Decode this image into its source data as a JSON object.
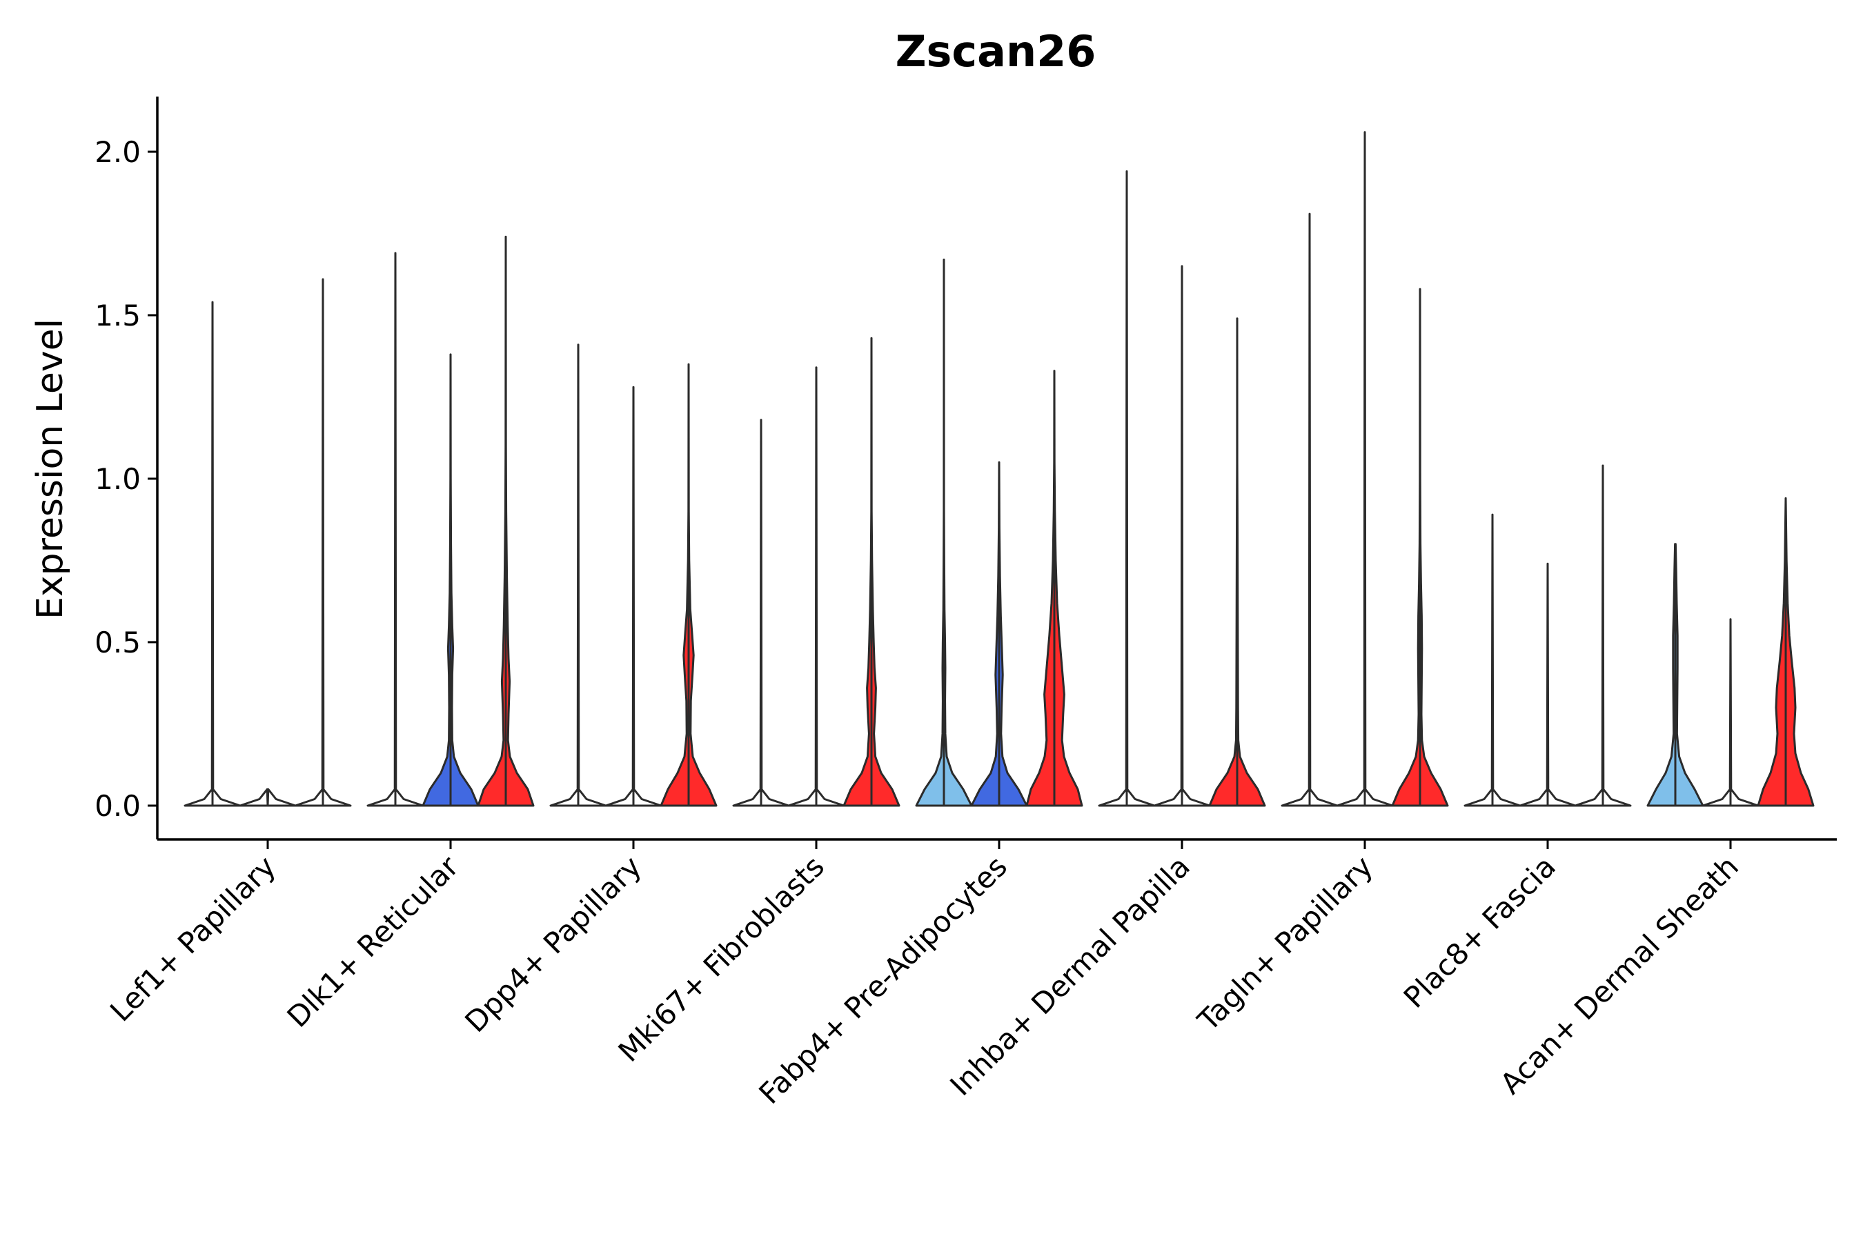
{
  "chart_data": {
    "type": "violin",
    "title": "Zscan26",
    "xlabel": "",
    "ylabel": "Expression Level",
    "ylim": [
      -0.1,
      2.17
    ],
    "yticks": [
      0.0,
      0.5,
      1.0,
      1.5,
      2.0
    ],
    "ytick_labels": [
      "0.0",
      "0.5",
      "1.0",
      "1.5",
      "2.0"
    ],
    "grid": false,
    "legend": "none",
    "colors": {
      "light_blue": "#7fbfea",
      "blue": "#4169e1",
      "red": "#ff2a2a",
      "outline": "#2b2b2b"
    },
    "categories": [
      {
        "label": "Lef1+ Papillary",
        "violins": [
          {
            "color": "light_blue",
            "max": 1.54,
            "width": 0.0,
            "density": []
          },
          {
            "color": "blue",
            "max": 0.0,
            "width": 0.0,
            "density": []
          },
          {
            "color": "red",
            "max": 1.61,
            "width": 0.0,
            "density": []
          }
        ]
      },
      {
        "label": "Dlk1+ Reticular",
        "violins": [
          {
            "color": "light_blue",
            "max": 1.69,
            "width": 0.0,
            "density": []
          },
          {
            "color": "blue",
            "max": 1.38,
            "width": 1.0,
            "density": [
              [
                0.0,
                1.0
              ],
              [
                0.05,
                0.75
              ],
              [
                0.1,
                0.35
              ],
              [
                0.15,
                0.12
              ],
              [
                0.2,
                0.06
              ],
              [
                0.3,
                0.05
              ],
              [
                0.4,
                0.06
              ],
              [
                0.48,
                0.09
              ],
              [
                0.55,
                0.06
              ],
              [
                0.65,
                0.03
              ],
              [
                0.8,
                0.015
              ],
              [
                1.0,
                0.005
              ]
            ]
          },
          {
            "color": "red",
            "max": 1.74,
            "width": 1.0,
            "density": [
              [
                0.0,
                1.0
              ],
              [
                0.05,
                0.8
              ],
              [
                0.1,
                0.4
              ],
              [
                0.15,
                0.15
              ],
              [
                0.2,
                0.08
              ],
              [
                0.28,
                0.1
              ],
              [
                0.38,
                0.14
              ],
              [
                0.45,
                0.1
              ],
              [
                0.55,
                0.07
              ],
              [
                0.7,
                0.04
              ],
              [
                0.9,
                0.015
              ],
              [
                1.1,
                0.005
              ]
            ]
          }
        ]
      },
      {
        "label": "Dpp4+ Papillary",
        "violins": [
          {
            "color": "light_blue",
            "max": 1.41,
            "width": 0.0,
            "density": []
          },
          {
            "color": "blue",
            "max": 1.28,
            "width": 0.0,
            "density": []
          },
          {
            "color": "red",
            "max": 1.35,
            "width": 1.0,
            "density": [
              [
                0.0,
                1.0
              ],
              [
                0.05,
                0.75
              ],
              [
                0.1,
                0.4
              ],
              [
                0.15,
                0.15
              ],
              [
                0.22,
                0.07
              ],
              [
                0.32,
                0.08
              ],
              [
                0.4,
                0.14
              ],
              [
                0.46,
                0.18
              ],
              [
                0.52,
                0.13
              ],
              [
                0.6,
                0.06
              ],
              [
                0.75,
                0.02
              ],
              [
                0.9,
                0.005
              ]
            ]
          }
        ]
      },
      {
        "label": "Mki67+ Fibroblasts",
        "violins": [
          {
            "color": "light_blue",
            "max": 1.18,
            "width": 0.0,
            "density": []
          },
          {
            "color": "blue",
            "max": 1.34,
            "width": 0.0,
            "density": []
          },
          {
            "color": "red",
            "max": 1.43,
            "width": 1.0,
            "density": [
              [
                0.0,
                1.0
              ],
              [
                0.05,
                0.75
              ],
              [
                0.1,
                0.35
              ],
              [
                0.15,
                0.14
              ],
              [
                0.22,
                0.09
              ],
              [
                0.3,
                0.14
              ],
              [
                0.36,
                0.16
              ],
              [
                0.42,
                0.11
              ],
              [
                0.5,
                0.08
              ],
              [
                0.6,
                0.05
              ],
              [
                0.75,
                0.02
              ],
              [
                0.9,
                0.005
              ]
            ]
          }
        ]
      },
      {
        "label": "Fabp4+ Pre-Adipocytes",
        "violins": [
          {
            "color": "light_blue",
            "max": 1.67,
            "width": 1.0,
            "density": [
              [
                0.0,
                1.0
              ],
              [
                0.05,
                0.7
              ],
              [
                0.1,
                0.3
              ],
              [
                0.15,
                0.1
              ],
              [
                0.22,
                0.05
              ],
              [
                0.32,
                0.04
              ],
              [
                0.42,
                0.05
              ],
              [
                0.5,
                0.04
              ],
              [
                0.6,
                0.02
              ],
              [
                0.75,
                0.01
              ],
              [
                0.9,
                0.003
              ]
            ]
          },
          {
            "color": "blue",
            "max": 1.05,
            "width": 1.0,
            "density": [
              [
                0.0,
                1.0
              ],
              [
                0.05,
                0.7
              ],
              [
                0.1,
                0.3
              ],
              [
                0.15,
                0.12
              ],
              [
                0.22,
                0.07
              ],
              [
                0.3,
                0.09
              ],
              [
                0.4,
                0.13
              ],
              [
                0.48,
                0.1
              ],
              [
                0.58,
                0.06
              ],
              [
                0.7,
                0.03
              ],
              [
                0.85,
                0.01
              ],
              [
                1.0,
                0.003
              ]
            ]
          },
          {
            "color": "red",
            "max": 1.33,
            "width": 1.0,
            "density": [
              [
                0.0,
                1.0
              ],
              [
                0.05,
                0.85
              ],
              [
                0.1,
                0.55
              ],
              [
                0.15,
                0.35
              ],
              [
                0.2,
                0.28
              ],
              [
                0.28,
                0.32
              ],
              [
                0.34,
                0.36
              ],
              [
                0.42,
                0.28
              ],
              [
                0.52,
                0.18
              ],
              [
                0.62,
                0.1
              ],
              [
                0.75,
                0.05
              ],
              [
                0.9,
                0.02
              ],
              [
                1.05,
                0.006
              ]
            ]
          }
        ]
      },
      {
        "label": "Inhba+ Dermal Papilla",
        "violins": [
          {
            "color": "light_blue",
            "max": 1.94,
            "width": 0.0,
            "density": []
          },
          {
            "color": "blue",
            "max": 1.65,
            "width": 0.0,
            "density": []
          },
          {
            "color": "red",
            "max": 1.49,
            "width": 1.0,
            "density": [
              [
                0.0,
                1.0
              ],
              [
                0.05,
                0.75
              ],
              [
                0.1,
                0.35
              ],
              [
                0.15,
                0.1
              ],
              [
                0.2,
                0.04
              ],
              [
                0.3,
                0.03
              ],
              [
                0.45,
                0.025
              ],
              [
                0.6,
                0.02
              ],
              [
                0.75,
                0.015
              ],
              [
                0.9,
                0.01
              ],
              [
                1.05,
                0.003
              ]
            ]
          }
        ]
      },
      {
        "label": "Tagln+ Papillary",
        "violins": [
          {
            "color": "light_blue",
            "max": 1.81,
            "width": 0.0,
            "density": []
          },
          {
            "color": "blue",
            "max": 2.06,
            "width": 0.0,
            "density": []
          },
          {
            "color": "red",
            "max": 1.58,
            "width": 1.0,
            "density": [
              [
                0.0,
                1.0
              ],
              [
                0.05,
                0.75
              ],
              [
                0.1,
                0.4
              ],
              [
                0.15,
                0.15
              ],
              [
                0.2,
                0.07
              ],
              [
                0.28,
                0.05
              ],
              [
                0.38,
                0.06
              ],
              [
                0.48,
                0.07
              ],
              [
                0.58,
                0.06
              ],
              [
                0.68,
                0.035
              ],
              [
                0.8,
                0.015
              ],
              [
                1.0,
                0.004
              ]
            ]
          }
        ]
      },
      {
        "label": "Plac8+ Fascia",
        "violins": [
          {
            "color": "light_blue",
            "max": 0.89,
            "width": 0.0,
            "density": []
          },
          {
            "color": "blue",
            "max": 0.74,
            "width": 0.0,
            "density": []
          },
          {
            "color": "red",
            "max": 1.04,
            "width": 0.0,
            "density": []
          }
        ]
      },
      {
        "label": "Acan+ Dermal Sheath",
        "violins": [
          {
            "color": "light_blue",
            "max": 0.8,
            "width": 1.0,
            "density": [
              [
                0.0,
                1.0
              ],
              [
                0.05,
                0.7
              ],
              [
                0.1,
                0.35
              ],
              [
                0.15,
                0.14
              ],
              [
                0.22,
                0.06
              ],
              [
                0.32,
                0.07
              ],
              [
                0.42,
                0.08
              ],
              [
                0.52,
                0.08
              ],
              [
                0.62,
                0.05
              ],
              [
                0.72,
                0.03
              ],
              [
                0.8,
                0.01
              ]
            ]
          },
          {
            "color": "blue",
            "max": 0.57,
            "width": 0.0,
            "density": []
          },
          {
            "color": "red",
            "max": 0.94,
            "width": 1.0,
            "density": [
              [
                0.0,
                1.0
              ],
              [
                0.05,
                0.82
              ],
              [
                0.1,
                0.55
              ],
              [
                0.16,
                0.35
              ],
              [
                0.22,
                0.3
              ],
              [
                0.3,
                0.35
              ],
              [
                0.36,
                0.32
              ],
              [
                0.44,
                0.22
              ],
              [
                0.52,
                0.13
              ],
              [
                0.62,
                0.07
              ],
              [
                0.75,
                0.03
              ],
              [
                0.88,
                0.01
              ]
            ]
          }
        ]
      }
    ]
  }
}
